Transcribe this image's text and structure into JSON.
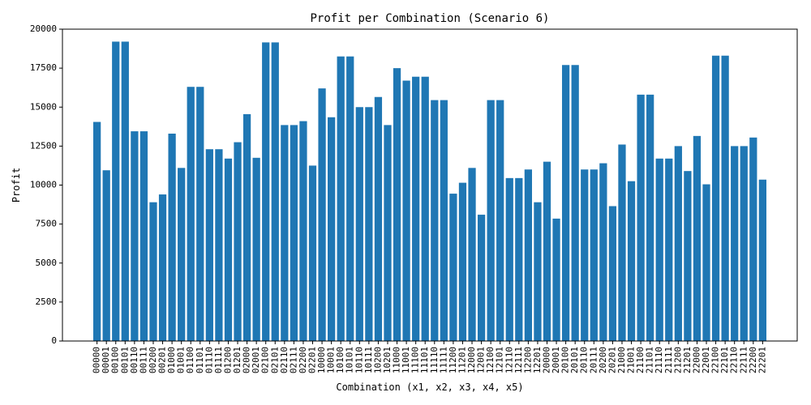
{
  "chart_data": {
    "type": "bar",
    "title": "Profit per Combination (Scenario 6)",
    "xlabel": "Combination (x1, x2, x3, x4, x5)",
    "ylabel": "Profit",
    "ylim": [
      0,
      20000
    ],
    "yticks": [
      0,
      2500,
      5000,
      7500,
      10000,
      12500,
      15000,
      17500,
      20000
    ],
    "bar_color": "#1f77b4",
    "categories": [
      "00000",
      "00001",
      "00100",
      "00101",
      "00110",
      "00111",
      "00200",
      "00201",
      "01000",
      "01001",
      "01100",
      "01101",
      "01110",
      "01111",
      "01200",
      "01201",
      "02000",
      "02001",
      "02100",
      "02101",
      "02110",
      "02111",
      "02200",
      "02201",
      "10000",
      "10001",
      "10100",
      "10101",
      "10110",
      "10111",
      "10200",
      "10201",
      "11000",
      "11001",
      "11100",
      "11101",
      "11110",
      "11111",
      "11200",
      "11201",
      "12000",
      "12001",
      "12100",
      "12101",
      "12110",
      "12111",
      "12200",
      "12201",
      "20000",
      "20001",
      "20100",
      "20101",
      "20110",
      "20111",
      "20200",
      "20201",
      "21000",
      "21001",
      "21100",
      "21101",
      "21110",
      "21111",
      "21200",
      "21201",
      "22000",
      "22001",
      "22100",
      "22101",
      "22110",
      "22111",
      "22200",
      "22201"
    ],
    "values": [
      14050,
      10950,
      19200,
      19200,
      13450,
      13450,
      8900,
      9400,
      13300,
      11100,
      16300,
      16300,
      12300,
      12300,
      11700,
      12750,
      14550,
      11750,
      19150,
      19150,
      13850,
      13850,
      14100,
      11250,
      16200,
      14350,
      18250,
      18250,
      15000,
      15000,
      15650,
      13850,
      17500,
      16700,
      16950,
      16950,
      15450,
      15450,
      9450,
      10150,
      11100,
      8100,
      15450,
      15450,
      10450,
      10450,
      11000,
      8900,
      11500,
      7850,
      17700,
      17700,
      11000,
      11000,
      11400,
      8650,
      12600,
      10250,
      15800,
      15800,
      11700,
      11700,
      12500,
      10900,
      13150,
      10050,
      18300,
      18300,
      12500,
      12500,
      13050,
      10350
    ]
  }
}
